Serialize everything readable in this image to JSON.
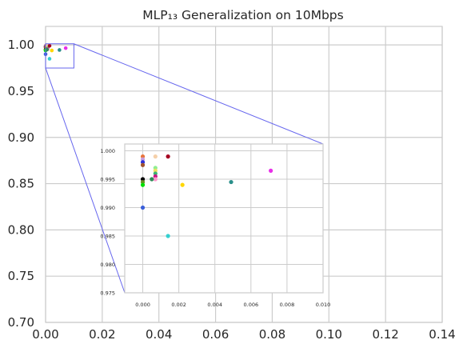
{
  "chart_data": {
    "type": "scatter",
    "title": "MLP₁₃ Generalization on 10Mbps",
    "xlabel": "",
    "ylabel": "",
    "xlim": [
      0.0,
      0.14
    ],
    "ylim": [
      0.7,
      1.02
    ],
    "x_ticks": [
      "0.00",
      "0.02",
      "0.04",
      "0.06",
      "0.08",
      "0.10",
      "0.12",
      "0.14"
    ],
    "y_ticks": [
      "0.70",
      "0.75",
      "0.80",
      "0.85",
      "0.90",
      "0.95",
      "1.00"
    ],
    "grid": true,
    "points": [
      {
        "x": 0.0,
        "y": 0.999,
        "color": "#e8743b"
      },
      {
        "x": 0.0,
        "y": 0.9985,
        "color": "#c49cdf"
      },
      {
        "x": 0.0,
        "y": 0.998,
        "color": "#2a2fd9"
      },
      {
        "x": 0.0,
        "y": 0.9975,
        "color": "#a0522d"
      },
      {
        "x": 0.0,
        "y": 0.995,
        "color": "#000000"
      },
      {
        "x": 0.0,
        "y": 0.9945,
        "color": "#6b8e23"
      },
      {
        "x": 0.0,
        "y": 0.994,
        "color": "#00e000"
      },
      {
        "x": 0.0,
        "y": 0.99,
        "color": "#3b5fd9"
      },
      {
        "x": 0.0007,
        "y": 0.999,
        "color": "#f5d0a9"
      },
      {
        "x": 0.0007,
        "y": 0.997,
        "color": "#90ee90"
      },
      {
        "x": 0.0007,
        "y": 0.9965,
        "color": "#f0e060"
      },
      {
        "x": 0.0007,
        "y": 0.996,
        "color": "#3cb371"
      },
      {
        "x": 0.0007,
        "y": 0.9955,
        "color": "#c71585"
      },
      {
        "x": 0.0007,
        "y": 0.995,
        "color": "#ff99cc"
      },
      {
        "x": 0.0005,
        "y": 0.995,
        "color": "#2e8b57"
      },
      {
        "x": 0.0014,
        "y": 0.999,
        "color": "#a50021"
      },
      {
        "x": 0.0014,
        "y": 0.985,
        "color": "#35d0d0"
      },
      {
        "x": 0.0022,
        "y": 0.994,
        "color": "#ffd700"
      },
      {
        "x": 0.0049,
        "y": 0.9945,
        "color": "#2a8f8a"
      },
      {
        "x": 0.0071,
        "y": 0.9965,
        "color": "#e830e8"
      }
    ],
    "inset": {
      "xlim": [
        -0.001,
        0.01
      ],
      "ylim": [
        0.975,
        1.0012
      ],
      "x_ticks": [
        "0.000",
        "0.002",
        "0.004",
        "0.006",
        "0.008",
        "0.010"
      ],
      "y_ticks": [
        "0.975",
        "0.980",
        "0.985",
        "0.990",
        "0.995",
        "1.000"
      ],
      "grid": true
    },
    "zoom_region": {
      "xlim": [
        -0.001,
        0.01
      ],
      "ylim": [
        0.975,
        1.0012
      ]
    },
    "colors": {
      "zoom_box": "#6666ee",
      "grid": "#cccccc",
      "axes": "#cccccc"
    }
  }
}
